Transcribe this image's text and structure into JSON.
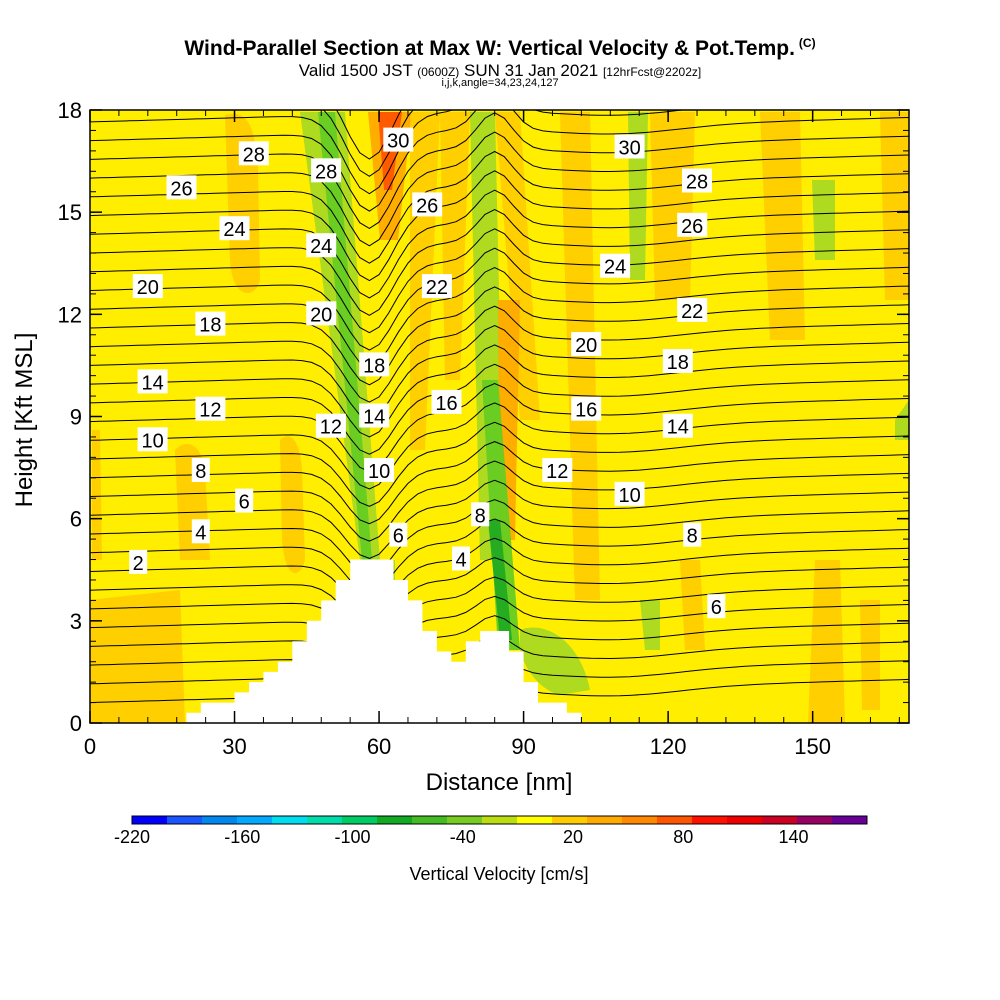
{
  "header": {
    "title": "Wind-Parallel Section at Max W: Vertical Velocity & Pot.Temp.",
    "copyright": "(C)",
    "valid_prefix": "Valid 1500 JST",
    "valid_zulu": "(0600Z)",
    "valid_date": "SUN 31 Jan 2021",
    "forecast": "[12hrFcst@2202z]",
    "indices": "i,j,k,angle=34,23,24,127"
  },
  "chart_data": {
    "type": "heatmap",
    "xlabel": "Distance [nm]",
    "ylabel": "Height [Kft MSL]",
    "xlim": [
      0,
      170
    ],
    "ylim": [
      0,
      18
    ],
    "xticks": [
      0,
      30,
      60,
      90,
      120,
      150
    ],
    "yticks": [
      0,
      3,
      6,
      9,
      12,
      15,
      18
    ],
    "colorbar": {
      "title": "Vertical Velocity [cm/s]",
      "min": -220,
      "max": 180,
      "step": 20,
      "tick_labels": [
        "-220",
        "-160",
        "-100",
        "-40",
        "20",
        "80",
        "140"
      ],
      "tick_values": [
        -220,
        -160,
        -100,
        -40,
        20,
        80,
        140
      ],
      "colors": [
        "#0000ff",
        "#1a55ff",
        "#0088ee",
        "#00aaff",
        "#00ddee",
        "#00ddaa",
        "#00cc66",
        "#11aa22",
        "#44bb22",
        "#77cc22",
        "#bbdd11",
        "#ffff00",
        "#ffcc00",
        "#ffaa00",
        "#ff8800",
        "#ff5500",
        "#ff1100",
        "#ee0000",
        "#cc0022",
        "#990066",
        "#660099"
      ]
    },
    "terrain": [
      [
        0,
        0
      ],
      [
        20,
        0
      ],
      [
        20,
        0.3
      ],
      [
        23,
        0.3
      ],
      [
        23,
        0.6
      ],
      [
        30,
        0.6
      ],
      [
        30,
        0.9
      ],
      [
        33,
        0.9
      ],
      [
        33,
        1.2
      ],
      [
        36,
        1.2
      ],
      [
        36,
        1.5
      ],
      [
        39,
        1.5
      ],
      [
        39,
        1.8
      ],
      [
        42,
        1.8
      ],
      [
        42,
        2.4
      ],
      [
        45,
        2.4
      ],
      [
        45,
        3.0
      ],
      [
        48,
        3.0
      ],
      [
        48,
        3.6
      ],
      [
        51,
        3.6
      ],
      [
        51,
        4.2
      ],
      [
        54,
        4.2
      ],
      [
        54,
        4.8
      ],
      [
        63,
        4.8
      ],
      [
        63,
        4.2
      ],
      [
        66,
        4.2
      ],
      [
        66,
        3.6
      ],
      [
        69,
        3.6
      ],
      [
        69,
        2.7
      ],
      [
        72,
        2.7
      ],
      [
        72,
        2.1
      ],
      [
        75,
        2.1
      ],
      [
        75,
        1.8
      ],
      [
        78,
        1.8
      ],
      [
        78,
        2.4
      ],
      [
        81,
        2.4
      ],
      [
        81,
        2.7
      ],
      [
        87,
        2.7
      ],
      [
        87,
        2.1
      ],
      [
        90,
        2.1
      ],
      [
        90,
        1.2
      ],
      [
        93,
        1.2
      ],
      [
        93,
        0.6
      ],
      [
        99,
        0.6
      ],
      [
        99,
        0.3
      ],
      [
        102,
        0.3
      ],
      [
        102,
        0
      ]
    ],
    "contour_labels": [
      {
        "x": 10,
        "y": 4.7,
        "text": "2"
      },
      {
        "x": 23,
        "y": 5.6,
        "text": "4"
      },
      {
        "x": 32,
        "y": 6.5,
        "text": "6"
      },
      {
        "x": 23,
        "y": 7.4,
        "text": "8"
      },
      {
        "x": 13,
        "y": 8.3,
        "text": "10"
      },
      {
        "x": 25,
        "y": 9.2,
        "text": "12"
      },
      {
        "x": 13,
        "y": 10.0,
        "text": "14"
      },
      {
        "x": 25,
        "y": 11.7,
        "text": "18"
      },
      {
        "x": 12,
        "y": 12.8,
        "text": "20"
      },
      {
        "x": 30,
        "y": 14.5,
        "text": "24"
      },
      {
        "x": 19,
        "y": 15.7,
        "text": "26"
      },
      {
        "x": 34,
        "y": 16.7,
        "text": "28"
      },
      {
        "x": 49,
        "y": 16.2,
        "text": "28"
      },
      {
        "x": 48,
        "y": 14.0,
        "text": "24"
      },
      {
        "x": 48,
        "y": 12.0,
        "text": "20"
      },
      {
        "x": 50,
        "y": 8.7,
        "text": "12"
      },
      {
        "x": 59,
        "y": 10.5,
        "text": "18"
      },
      {
        "x": 59,
        "y": 9.0,
        "text": "14"
      },
      {
        "x": 60,
        "y": 7.4,
        "text": "10"
      },
      {
        "x": 64,
        "y": 5.5,
        "text": "6"
      },
      {
        "x": 77,
        "y": 4.8,
        "text": "4"
      },
      {
        "x": 81,
        "y": 6.1,
        "text": "8"
      },
      {
        "x": 74,
        "y": 9.4,
        "text": "16"
      },
      {
        "x": 72,
        "y": 12.8,
        "text": "22"
      },
      {
        "x": 70,
        "y": 15.2,
        "text": "26"
      },
      {
        "x": 64,
        "y": 17.1,
        "text": "30"
      },
      {
        "x": 97,
        "y": 7.4,
        "text": "12"
      },
      {
        "x": 103,
        "y": 11.1,
        "text": "20"
      },
      {
        "x": 103,
        "y": 9.2,
        "text": "16"
      },
      {
        "x": 112,
        "y": 6.7,
        "text": "10"
      },
      {
        "x": 122,
        "y": 8.7,
        "text": "14"
      },
      {
        "x": 122,
        "y": 10.6,
        "text": "18"
      },
      {
        "x": 109,
        "y": 13.4,
        "text": "24"
      },
      {
        "x": 112,
        "y": 16.9,
        "text": "30"
      },
      {
        "x": 126,
        "y": 15.9,
        "text": "28"
      },
      {
        "x": 125,
        "y": 14.6,
        "text": "26"
      },
      {
        "x": 125,
        "y": 12.1,
        "text": "22"
      },
      {
        "x": 125,
        "y": 5.5,
        "text": "8"
      },
      {
        "x": 130,
        "y": 3.4,
        "text": "6"
      }
    ]
  }
}
